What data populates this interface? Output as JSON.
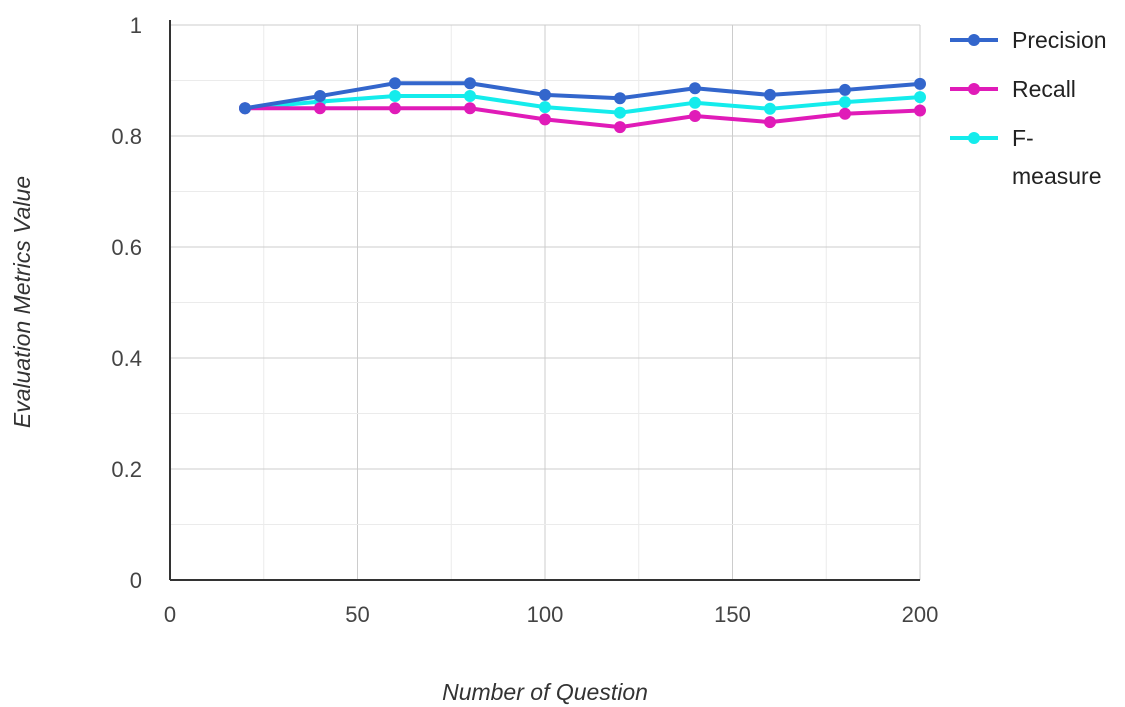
{
  "chart_data": {
    "type": "line",
    "title": "",
    "xlabel": "Number of Question",
    "ylabel": "Evaluation Metrics Value",
    "xlim": [
      0,
      200
    ],
    "ylim": [
      0,
      1
    ],
    "x_ticks": [
      "0",
      "50",
      "100",
      "150",
      "200"
    ],
    "y_ticks": [
      "0",
      "0.2",
      "0.4",
      "0.6",
      "0.8",
      "1"
    ],
    "grid": true,
    "legend_position": "top-right",
    "x": [
      20,
      40,
      60,
      80,
      100,
      120,
      140,
      160,
      180,
      200
    ],
    "series": [
      {
        "name": "Precision",
        "color": "#3366cc",
        "values": [
          0.85,
          0.872,
          0.895,
          0.895,
          0.874,
          0.868,
          0.886,
          0.874,
          0.883,
          0.894
        ]
      },
      {
        "name": "Recall",
        "color": "#e01bb8",
        "values": [
          0.85,
          0.85,
          0.85,
          0.85,
          0.83,
          0.816,
          0.836,
          0.825,
          0.84,
          0.846
        ]
      },
      {
        "name": "F-measure",
        "color": "#14ecec",
        "values": [
          0.85,
          0.862,
          0.872,
          0.872,
          0.852,
          0.842,
          0.86,
          0.849,
          0.861,
          0.87
        ]
      }
    ],
    "legend_lines": [
      [
        "Precision"
      ],
      [
        "Recall"
      ],
      [
        "F-",
        "measure"
      ]
    ]
  }
}
